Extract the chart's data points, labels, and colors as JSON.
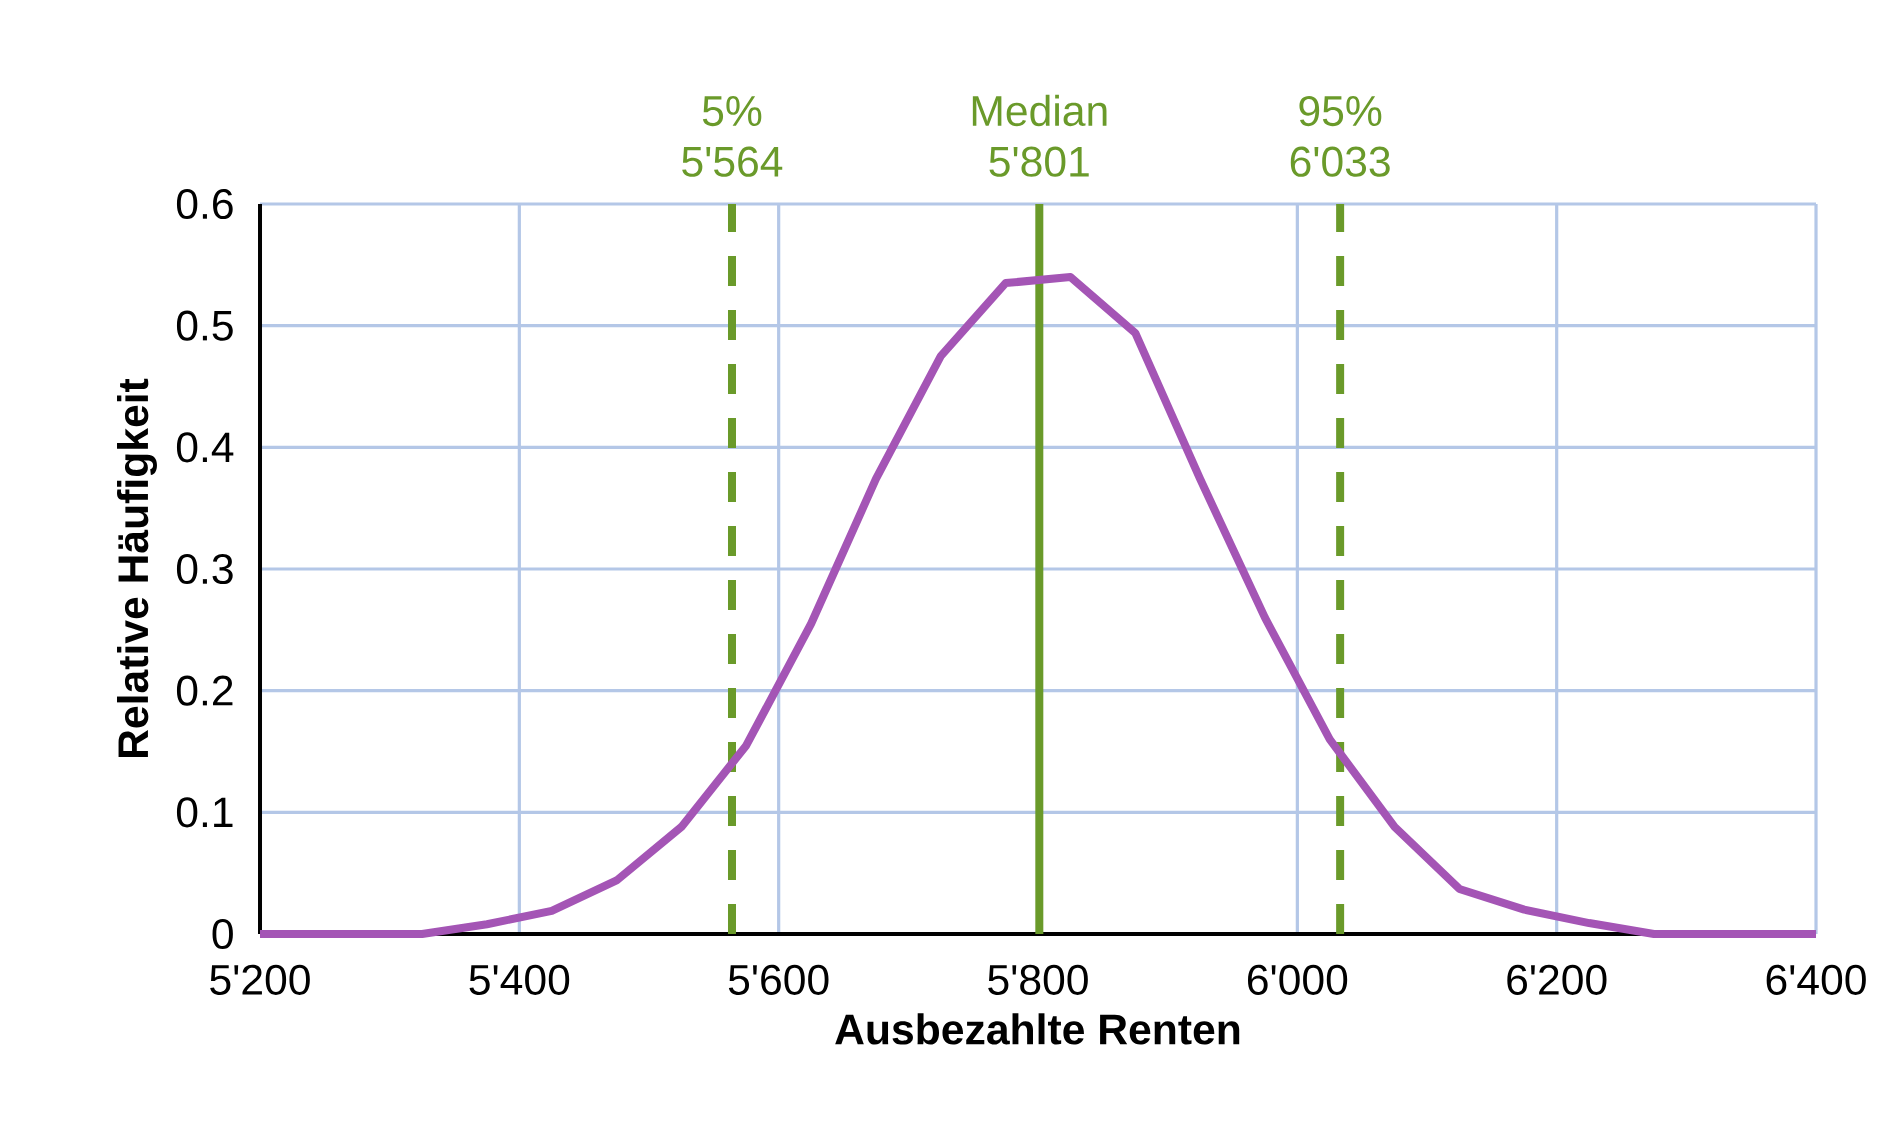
{
  "chart_data": {
    "type": "line",
    "xlabel": "Ausbezahlte Renten",
    "ylabel": "Relative Häufigkeit",
    "x": [
      5200,
      5225,
      5275,
      5325,
      5375,
      5425,
      5475,
      5525,
      5575,
      5625,
      5675,
      5725,
      5775,
      5825,
      5875,
      5925,
      5975,
      6025,
      6075,
      6125,
      6175,
      6225,
      6275,
      6325,
      6375,
      6400
    ],
    "series": [
      {
        "color": "#a455b5",
        "values": [
          0,
          0,
          0,
          0,
          0.008,
          0.019,
          0.044,
          0.088,
          0.155,
          0.255,
          0.374,
          0.475,
          0.535,
          0.54,
          0.494,
          0.374,
          0.26,
          0.16,
          0.088,
          0.037,
          0.02,
          0.009,
          0,
          0,
          0,
          0
        ]
      }
    ],
    "xlim": [
      5200,
      6400
    ],
    "ylim": [
      0,
      0.6
    ],
    "xticks": [
      {
        "value": 5200,
        "label": "5'200"
      },
      {
        "value": 5400,
        "label": "5'400"
      },
      {
        "value": 5600,
        "label": "5'600"
      },
      {
        "value": 5800,
        "label": "5'800"
      },
      {
        "value": 6000,
        "label": "6'000"
      },
      {
        "value": 6200,
        "label": "6'200"
      },
      {
        "value": 6400,
        "label": "6'400"
      }
    ],
    "yticks": [
      0,
      0.1,
      0.2,
      0.3,
      0.4,
      0.5,
      0.6
    ],
    "grid": true,
    "ref_lines": [
      {
        "axis": "x",
        "value": 5564,
        "label": "5% 5'564",
        "color": "#6a9a2a",
        "line_style": "dashed"
      },
      {
        "axis": "x",
        "value": 5801,
        "label": "Median 5'801",
        "color": "#6a9a2a",
        "line_style": "solid"
      },
      {
        "axis": "x",
        "value": 6033,
        "label": "95% 6'033",
        "color": "#6a9a2a",
        "line_style": "dashed"
      }
    ]
  }
}
